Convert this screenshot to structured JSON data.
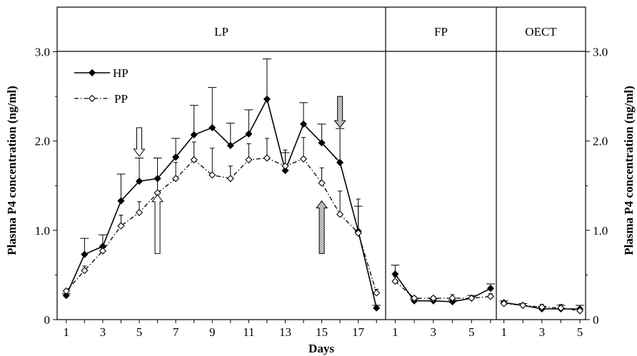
{
  "chart_data": {
    "type": "line",
    "ylabel_left": "Plasma P4 concentration (ng/ml)",
    "ylabel_right": "Plasma P4 concentration (ng/ml)",
    "xlabel": "Days",
    "ylim": [
      0,
      3.5
    ],
    "y_ticks": [
      {
        "v": 0,
        "label": "0"
      },
      {
        "v": 1.0,
        "label": "1.0"
      },
      {
        "v": 2.0,
        "label": "2.0"
      },
      {
        "v": 3.0,
        "label": "3.0"
      }
    ],
    "legend": {
      "placement": "top-left",
      "entries": [
        "HP",
        "PP"
      ]
    },
    "panels": [
      {
        "name": "LP",
        "x_range": [
          0.5,
          18.5
        ],
        "x_ticks": [
          1,
          3,
          5,
          7,
          9,
          11,
          13,
          15,
          17
        ],
        "x": [
          1,
          2,
          3,
          4,
          5,
          6,
          7,
          8,
          9,
          10,
          11,
          12,
          13,
          14,
          15,
          16,
          17,
          18
        ],
        "series": [
          {
            "name": "HP",
            "values": [
              0.27,
              0.73,
              0.82,
              1.33,
              1.55,
              1.58,
              1.82,
              2.07,
              2.15,
              1.95,
              2.08,
              2.47,
              1.67,
              2.19,
              1.98,
              1.76,
              0.99,
              0.13
            ],
            "errors": [
              0.02,
              0.18,
              0.13,
              0.3,
              0.26,
              0.23,
              0.21,
              0.33,
              0.45,
              0.25,
              0.27,
              0.45,
              0.2,
              0.24,
              0.21,
              0.38,
              0.28,
              0.03
            ]
          },
          {
            "name": "PP",
            "values": [
              0.32,
              0.55,
              0.77,
              1.05,
              1.2,
              1.42,
              1.58,
              1.79,
              1.62,
              1.58,
              1.79,
              1.81,
              1.72,
              1.8,
              1.53,
              1.18,
              0.97,
              0.3
            ],
            "errors": [
              0.02,
              0.05,
              0.07,
              0.12,
              0.12,
              0.15,
              0.18,
              0.2,
              0.3,
              0.14,
              0.18,
              0.22,
              0.18,
              0.24,
              0.17,
              0.26,
              0.38,
              0.04
            ]
          }
        ],
        "annotations": [
          {
            "type": "hollow-arrow-down",
            "x": 5,
            "y_from": 2.15,
            "y_to": 1.83
          },
          {
            "type": "hollow-arrow-up",
            "x": 6,
            "y_from": 0.74,
            "y_to": 1.4
          },
          {
            "type": "shaded-arrow-down",
            "x": 16,
            "y_from": 2.5,
            "y_to": 2.15
          },
          {
            "type": "shaded-arrow-up",
            "x": 15,
            "y_from": 0.74,
            "y_to": 1.33
          }
        ]
      },
      {
        "name": "FP",
        "x_range": [
          0.5,
          6.3
        ],
        "x_ticks": [
          1,
          3,
          5
        ],
        "x": [
          1,
          2,
          3,
          4,
          5,
          6
        ],
        "series": [
          {
            "name": "HP",
            "values": [
              0.51,
              0.21,
              0.21,
              0.2,
              0.24,
              0.35
            ],
            "errors": [
              0.1,
              0.02,
              0.02,
              0.02,
              0.03,
              0.05
            ]
          },
          {
            "name": "PP",
            "values": [
              0.43,
              0.24,
              0.24,
              0.24,
              0.24,
              0.26
            ],
            "errors": [
              0.05,
              0.02,
              0.02,
              0.04,
              0.03,
              0.03
            ]
          }
        ]
      },
      {
        "name": "OECT",
        "x_range": [
          0.6,
          5.3
        ],
        "x_ticks": [
          1,
          3,
          5
        ],
        "x": [
          1,
          2,
          3,
          4,
          5
        ],
        "series": [
          {
            "name": "HP",
            "values": [
              0.19,
              0.16,
              0.12,
              0.12,
              0.12
            ],
            "errors": [
              0.02,
              0.02,
              0.03,
              0.04,
              0.04
            ]
          },
          {
            "name": "PP",
            "values": [
              0.18,
              0.16,
              0.14,
              0.13,
              0.1
            ],
            "errors": [
              0.02,
              0.02,
              0.03,
              0.04,
              0.03
            ]
          }
        ]
      }
    ]
  }
}
